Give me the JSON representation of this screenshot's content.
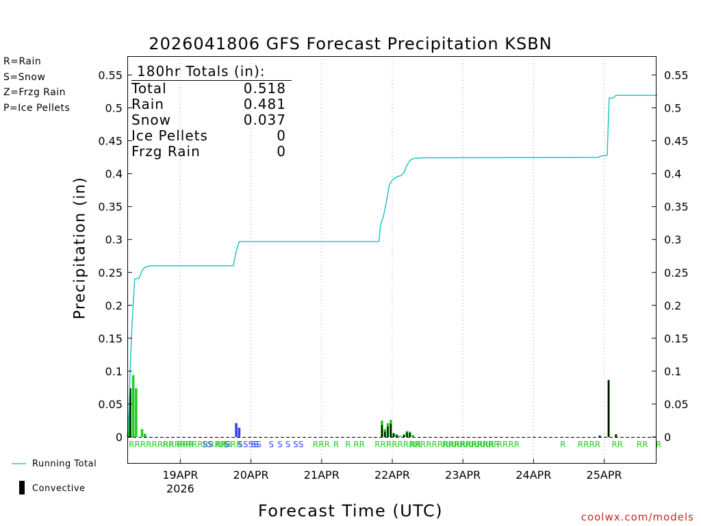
{
  "title": "2026041806 GFS Forecast Precipitation KSBN",
  "credit": "coolwx.com/models",
  "ptype_legend": [
    {
      "label": "R=Rain",
      "color": "#22cc22"
    },
    {
      "label": "S=Snow",
      "color": "#3344ee"
    },
    {
      "label": "Z=Frzg Rain",
      "color": "#ff9933"
    },
    {
      "label": "P=Ice Pellets",
      "color": "#ee2299"
    }
  ],
  "totals": {
    "header": "180hr Totals (in):",
    "rows": [
      {
        "label": "Total",
        "value": "0.518"
      },
      {
        "label": "Rain",
        "value": "0.481"
      },
      {
        "label": "Snow",
        "value": "0.037"
      },
      {
        "label": "Ice Pellets",
        "value": "0"
      },
      {
        "label": "Frzg Rain",
        "value": "0"
      }
    ]
  },
  "bottom_legend": {
    "running_total": "Running Total",
    "convective": "Convective"
  },
  "colors": {
    "rain": "#22cc22",
    "snow": "#3344ee",
    "convective": "#000000",
    "running_total": "#22c4c4",
    "axis": "#000000",
    "grid": "#999999"
  },
  "chart_data": {
    "type": "bar",
    "title": "2026041806 GFS Forecast Precipitation KSBN",
    "xlabel": "Forecast Time (UTC)",
    "ylabel": "Precipitation (in)",
    "ylim": [
      0,
      0.57
    ],
    "xlim_hours": [
      0,
      180
    ],
    "yticks": [
      0,
      0.05,
      0.1,
      0.15,
      0.2,
      0.25,
      0.3,
      0.35,
      0.4,
      0.45,
      0.5,
      0.55
    ],
    "ytick_labels": [
      "0",
      "0.05",
      "0.1",
      "0.15",
      "0.2",
      "0.25",
      "0.3",
      "0.35",
      "0.4",
      "0.45",
      "0.5",
      "0.55"
    ],
    "xticks": [
      {
        "hour": 18,
        "label": "19APR",
        "sublabel": "2026"
      },
      {
        "hour": 42,
        "label": "20APR"
      },
      {
        "hour": 66,
        "label": "21APR"
      },
      {
        "hour": 90,
        "label": "22APR"
      },
      {
        "hour": 114,
        "label": "23APR"
      },
      {
        "hour": 138,
        "label": "24APR"
      },
      {
        "hour": 162,
        "label": "25APR"
      }
    ],
    "precip_bars": [
      {
        "hour": 0.5,
        "value": 0.034,
        "type": "R"
      },
      {
        "hour": 1.0,
        "value": 0.074,
        "type": "R"
      },
      {
        "hour": 2.0,
        "value": 0.094,
        "type": "R"
      },
      {
        "hour": 3.0,
        "value": 0.074,
        "type": "R"
      },
      {
        "hour": 5.0,
        "value": 0.012,
        "type": "R"
      },
      {
        "hour": 6.0,
        "value": 0.005,
        "type": "R"
      },
      {
        "hour": 37.0,
        "value": 0.021,
        "type": "S"
      },
      {
        "hour": 38.0,
        "value": 0.014,
        "type": "S"
      },
      {
        "hour": 86.5,
        "value": 0.025,
        "type": "R"
      },
      {
        "hour": 87.5,
        "value": 0.012,
        "type": "R"
      },
      {
        "hour": 88.5,
        "value": 0.021,
        "type": "R"
      },
      {
        "hour": 89.5,
        "value": 0.026,
        "type": "R"
      },
      {
        "hour": 90.5,
        "value": 0.006,
        "type": "R"
      },
      {
        "hour": 91.5,
        "value": 0.004,
        "type": "R"
      },
      {
        "hour": 92.5,
        "value": 0.002,
        "type": "R"
      },
      {
        "hour": 94.0,
        "value": 0.004,
        "type": "R"
      },
      {
        "hour": 95.0,
        "value": 0.009,
        "type": "R"
      },
      {
        "hour": 96.0,
        "value": 0.008,
        "type": "R"
      },
      {
        "hour": 97.0,
        "value": 0.003,
        "type": "R"
      },
      {
        "hour": 160.5,
        "value": 0.002,
        "type": "R"
      },
      {
        "hour": 163.5,
        "value": 0.087,
        "type": "R"
      },
      {
        "hour": 166.0,
        "value": 0.004,
        "type": "R"
      }
    ],
    "convective_bars": [
      {
        "hour": 1.0,
        "value": 0.074
      },
      {
        "hour": 86.5,
        "value": 0.018
      },
      {
        "hour": 87.5,
        "value": 0.008
      },
      {
        "hour": 88.5,
        "value": 0.016
      },
      {
        "hour": 89.5,
        "value": 0.02
      },
      {
        "hour": 90.5,
        "value": 0.005
      },
      {
        "hour": 91.5,
        "value": 0.003
      },
      {
        "hour": 94.0,
        "value": 0.003
      },
      {
        "hour": 95.0,
        "value": 0.007
      },
      {
        "hour": 96.0,
        "value": 0.006
      },
      {
        "hour": 160.5,
        "value": 0.002
      },
      {
        "hour": 163.5,
        "value": 0.086
      },
      {
        "hour": 166.0,
        "value": 0.004
      }
    ],
    "running_total": [
      [
        0,
        0
      ],
      [
        0.5,
        0.034
      ],
      [
        1.0,
        0.108
      ],
      [
        1.5,
        0.16
      ],
      [
        2.0,
        0.202
      ],
      [
        2.5,
        0.24
      ],
      [
        4,
        0.241
      ],
      [
        5,
        0.253
      ],
      [
        6,
        0.258
      ],
      [
        8,
        0.26
      ],
      [
        36,
        0.26
      ],
      [
        37,
        0.282
      ],
      [
        38,
        0.297
      ],
      [
        84,
        0.297
      ],
      [
        85.5,
        0.297
      ],
      [
        86,
        0.322
      ],
      [
        87,
        0.335
      ],
      [
        88,
        0.357
      ],
      [
        89,
        0.383
      ],
      [
        90,
        0.39
      ],
      [
        91,
        0.394
      ],
      [
        92,
        0.396
      ],
      [
        93,
        0.397
      ],
      [
        94,
        0.402
      ],
      [
        95,
        0.413
      ],
      [
        96,
        0.42
      ],
      [
        97,
        0.423
      ],
      [
        100,
        0.424
      ],
      [
        160,
        0.425
      ],
      [
        161,
        0.427
      ],
      [
        163,
        0.428
      ],
      [
        163.7,
        0.515
      ],
      [
        165,
        0.515
      ],
      [
        166,
        0.519
      ],
      [
        180,
        0.519
      ]
    ],
    "ptype_labels": [
      {
        "hour": 0.5,
        "text": "RRRRRRRRRRRRRRRRRR",
        "type": "R"
      },
      {
        "hour": 12.0,
        "text": "RR RRR",
        "type": "R"
      },
      {
        "hour": 25.5,
        "text": "SS",
        "type": "S"
      },
      {
        "hour": 30.0,
        "text": "RR",
        "type": "R"
      },
      {
        "hour": 33.0,
        "text": "S",
        "type": "S"
      },
      {
        "hour": 35.0,
        "text": "RR",
        "type": "R"
      },
      {
        "hour": 37.5,
        "text": "SSSS",
        "type": "S"
      },
      {
        "hour": 42.0,
        "text": "SS",
        "type": "S"
      },
      {
        "hour": 48.0,
        "text": "S",
        "type": "S"
      },
      {
        "hour": 51.0,
        "text": "S S SS",
        "type": "S"
      },
      {
        "hour": 63.0,
        "text": "RRR",
        "type": "R"
      },
      {
        "hour": 70.0,
        "text": "R",
        "type": "R"
      },
      {
        "hour": 74.0,
        "text": "R RR",
        "type": "R"
      },
      {
        "hour": 84.0,
        "text": "RRRRRRRRRRRRRRRRRRRRR",
        "type": "R"
      },
      {
        "hour": 96.0,
        "text": "RR",
        "type": "R"
      },
      {
        "hour": 107.0,
        "text": "RRRRRRRRRR",
        "type": "R"
      },
      {
        "hour": 125.5,
        "text": "RRRR",
        "type": "R"
      },
      {
        "hour": 147.0,
        "text": "R",
        "type": "R"
      },
      {
        "hour": 153.0,
        "text": "RRRR",
        "type": "R"
      },
      {
        "hour": 164.5,
        "text": "RR",
        "type": "R"
      },
      {
        "hour": 173.0,
        "text": "RR",
        "type": "R"
      },
      {
        "hour": 179.5,
        "text": "R",
        "type": "R"
      }
    ]
  }
}
